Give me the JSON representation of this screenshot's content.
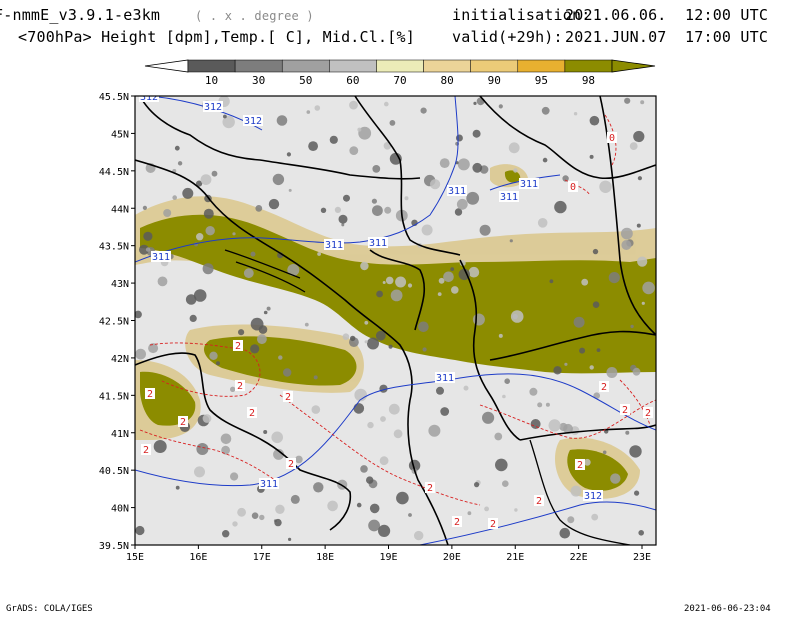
{
  "header": {
    "model_title": "F-nmmE_v3.9.1-e3km",
    "unit_note": "( . x . degree )",
    "init_label": "initialisation:",
    "init_value": "2021.06.06.  12:00 UTC",
    "fields": "<700hPa> Height [dpm],Temp.[ C], Mid.Cl.[%]",
    "valid_label": "valid(+29h):",
    "valid_value": "2021.JUN.07  17:00 UTC"
  },
  "colorbar": {
    "labels": [
      "10",
      "30",
      "50",
      "60",
      "70",
      "80",
      "90",
      "95",
      "98"
    ],
    "colors": [
      "#5a5a5a",
      "#7d7d7d",
      "#a0a0a0",
      "#c0c0c0",
      "#ececb8",
      "#ecd498",
      "#eccb78",
      "#e8b030",
      "#8c8c00"
    ]
  },
  "map": {
    "x_ticks": [
      "15E",
      "16E",
      "17E",
      "18E",
      "19E",
      "20E",
      "21E",
      "22E",
      "23E"
    ],
    "y_ticks": [
      "45.5N",
      "45N",
      "44.5N",
      "44N",
      "43.5N",
      "43N",
      "42.5N",
      "42N",
      "41.5N",
      "41N",
      "40.5N",
      "40N",
      "39.5N"
    ],
    "background": "#e6e6e6",
    "height_contour_color": "#1e3cc8",
    "temp_contour_color": "#d82020",
    "height_labels": [
      "312",
      "312",
      "312",
      "311",
      "311",
      "311",
      "311",
      "311",
      "311",
      "311",
      "311",
      "312"
    ],
    "temp_labels": [
      "0",
      "0",
      "2",
      "2",
      "2",
      "2",
      "2",
      "2",
      "2",
      "2",
      "2",
      "2",
      "2",
      "2",
      "2",
      "2",
      "2",
      "2"
    ]
  },
  "footer": {
    "left": "GrADS: COLA/IGES",
    "right": "2021-06-06-23:04"
  }
}
